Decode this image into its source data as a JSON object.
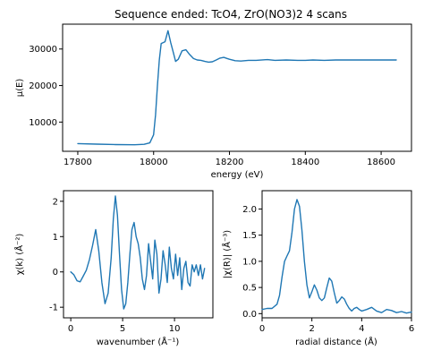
{
  "figure": {
    "title": "Sequence ended: TcO4, ZrO(NO3)2  4 scans"
  },
  "colors": {
    "line": "#1f77b4"
  },
  "chart_data": [
    {
      "type": "line",
      "xlabel": "energy (eV)",
      "ylabel": "μ(E)",
      "xlim": [
        17760,
        18680
      ],
      "ylim": [
        2000,
        36800
      ],
      "xticks": [
        17800,
        18000,
        18200,
        18400,
        18600
      ],
      "yticks": [
        10000,
        20000,
        30000
      ],
      "grid": false,
      "series": [
        {
          "x": [
            17800,
            17850,
            17900,
            17950,
            17975,
            17990,
            18000,
            18005,
            18010,
            18015,
            18020,
            18030,
            18038,
            18045,
            18052,
            18058,
            18065,
            18075,
            18085,
            18095,
            18105,
            18115,
            18125,
            18135,
            18145,
            18155,
            18165,
            18175,
            18185,
            18200,
            18215,
            18230,
            18250,
            18270,
            18300,
            18320,
            18350,
            18380,
            18400,
            18420,
            18450,
            18480,
            18500,
            18550,
            18600,
            18640
          ],
          "y": [
            4100,
            3950,
            3850,
            3800,
            3900,
            4300,
            6500,
            12000,
            20000,
            27000,
            31500,
            32000,
            35000,
            31800,
            29000,
            26600,
            27200,
            29500,
            29800,
            28500,
            27400,
            27000,
            26900,
            26600,
            26400,
            26500,
            27000,
            27500,
            27700,
            27200,
            26800,
            26700,
            26900,
            26900,
            27100,
            26900,
            27000,
            26900,
            26900,
            27000,
            26900,
            27000,
            27000,
            27000,
            27000,
            27000
          ]
        }
      ]
    },
    {
      "type": "line",
      "xlabel": "wavenumber (Å⁻¹)",
      "ylabel": "χ(k)  (Å⁻²)",
      "xlim": [
        -0.7,
        13.7
      ],
      "ylim": [
        -1.3,
        2.3
      ],
      "xticks": [
        0,
        5,
        10
      ],
      "yticks": [
        -1,
        0,
        1,
        2
      ],
      "grid": false,
      "series": [
        {
          "x": [
            0,
            0.3,
            0.6,
            0.9,
            1.2,
            1.5,
            1.8,
            2.1,
            2.4,
            2.7,
            3.0,
            3.3,
            3.6,
            3.9,
            4.1,
            4.3,
            4.5,
            4.7,
            4.9,
            5.1,
            5.3,
            5.5,
            5.7,
            5.9,
            6.1,
            6.3,
            6.5,
            6.7,
            6.9,
            7.1,
            7.3,
            7.5,
            7.7,
            7.9,
            8.1,
            8.3,
            8.5,
            8.7,
            8.9,
            9.1,
            9.3,
            9.5,
            9.7,
            9.9,
            10.1,
            10.3,
            10.5,
            10.7,
            10.9,
            11.1,
            11.3,
            11.5,
            11.7,
            11.9,
            12.1,
            12.3,
            12.5,
            12.7,
            12.9
          ],
          "y": [
            0.0,
            -0.08,
            -0.25,
            -0.28,
            -0.12,
            0.05,
            0.35,
            0.75,
            1.2,
            0.6,
            -0.3,
            -0.9,
            -0.6,
            0.4,
            1.5,
            2.15,
            1.6,
            0.5,
            -0.5,
            -1.05,
            -0.9,
            -0.3,
            0.5,
            1.2,
            1.4,
            1.0,
            0.8,
            0.4,
            -0.2,
            -0.5,
            -0.1,
            0.8,
            0.3,
            -0.2,
            0.9,
            0.5,
            -0.6,
            -0.2,
            0.6,
            0.2,
            -0.3,
            0.7,
            0.1,
            -0.2,
            0.5,
            -0.1,
            0.4,
            -0.5,
            0.1,
            0.3,
            -0.3,
            -0.4,
            0.2,
            0.0,
            0.2,
            -0.1,
            0.2,
            -0.2,
            0.1
          ]
        }
      ]
    },
    {
      "type": "line",
      "xlabel": "radial distance (Å)",
      "ylabel": "|χ(R)|  (Å⁻³)",
      "xlim": [
        0,
        6
      ],
      "ylim": [
        -0.08,
        2.35
      ],
      "xticks": [
        0,
        2,
        4,
        6
      ],
      "yticks": [
        0.0,
        0.5,
        1.0,
        1.5,
        2.0
      ],
      "grid": false,
      "series": [
        {
          "x": [
            0,
            0.2,
            0.4,
            0.6,
            0.7,
            0.8,
            0.9,
            1.0,
            1.1,
            1.2,
            1.3,
            1.4,
            1.5,
            1.6,
            1.7,
            1.8,
            1.9,
            2.0,
            2.1,
            2.2,
            2.3,
            2.4,
            2.5,
            2.6,
            2.7,
            2.8,
            2.9,
            3.0,
            3.1,
            3.2,
            3.3,
            3.4,
            3.5,
            3.6,
            3.7,
            3.8,
            3.9,
            4.0,
            4.2,
            4.4,
            4.6,
            4.8,
            5.0,
            5.2,
            5.4,
            5.6,
            5.8,
            6.0
          ],
          "y": [
            0.08,
            0.1,
            0.1,
            0.18,
            0.35,
            0.7,
            1.0,
            1.1,
            1.2,
            1.55,
            2.0,
            2.18,
            2.05,
            1.6,
            1.0,
            0.55,
            0.3,
            0.42,
            0.55,
            0.45,
            0.3,
            0.25,
            0.3,
            0.5,
            0.68,
            0.62,
            0.4,
            0.2,
            0.25,
            0.32,
            0.28,
            0.18,
            0.1,
            0.05,
            0.1,
            0.12,
            0.08,
            0.05,
            0.08,
            0.12,
            0.05,
            0.02,
            0.08,
            0.06,
            0.02,
            0.04,
            0.01,
            0.03
          ]
        }
      ]
    }
  ]
}
